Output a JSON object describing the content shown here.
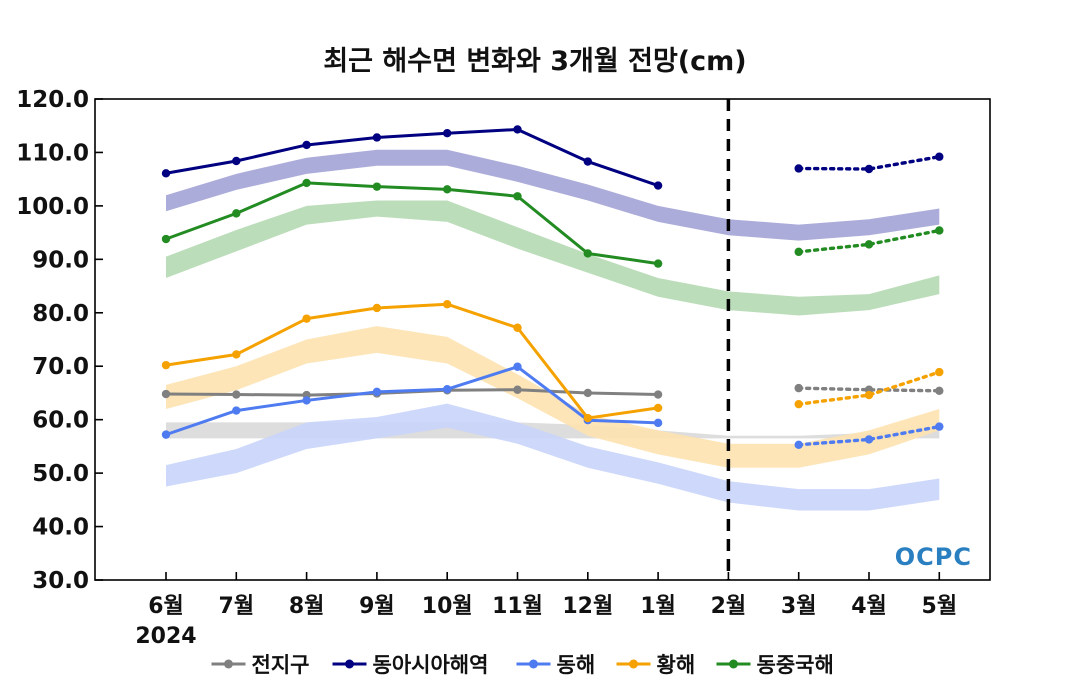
{
  "chart_data": {
    "type": "line",
    "title": "최근 해수면 변화와 3개월 전망(cm)",
    "xlabel": "",
    "ylabel": "",
    "categories": [
      "6월",
      "7월",
      "8월",
      "9월",
      "10월",
      "11월",
      "12월",
      "1월",
      "2월",
      "3월",
      "4월",
      "5월"
    ],
    "year_label": "2024",
    "ylim": [
      30,
      120
    ],
    "yticks": [
      "30.0",
      "40.0",
      "50.0",
      "60.0",
      "70.0",
      "80.0",
      "90.0",
      "100.0",
      "110.0",
      "120.0"
    ],
    "forecast_divider_after": "2월",
    "legend_position": "bottom",
    "series": [
      {
        "name": "전지구",
        "color": "#808080",
        "observed": [
          64.8,
          64.7,
          64.6,
          64.9,
          65.5,
          65.6,
          65.0,
          64.7,
          null,
          null,
          null,
          null
        ],
        "forecast": [
          null,
          null,
          null,
          null,
          null,
          null,
          null,
          null,
          null,
          65.9,
          65.6,
          65.4
        ],
        "band_color": "#d9d9d9",
        "band_low": [
          56.5,
          56.5,
          56.5,
          56.5,
          56.5,
          56.5,
          56.5,
          56.5,
          56.5,
          56.5,
          56.5,
          56.5
        ],
        "band_high": [
          59.5,
          59.5,
          59.5,
          59.5,
          59.5,
          59.5,
          59.0,
          58.0,
          57.0,
          57.0,
          57.5,
          58.5
        ]
      },
      {
        "name": "동아시아해역",
        "color": "#000080",
        "observed": [
          106.1,
          108.4,
          111.4,
          112.8,
          113.6,
          114.3,
          108.3,
          103.8,
          null,
          null,
          null,
          null
        ],
        "forecast": [
          null,
          null,
          null,
          null,
          null,
          null,
          null,
          null,
          null,
          107.0,
          106.9,
          109.2
        ],
        "band_color": "#a3a3d6",
        "band_low": [
          99.0,
          103.0,
          106.0,
          107.5,
          107.5,
          104.5,
          101.0,
          97.0,
          94.5,
          93.5,
          94.5,
          96.5
        ],
        "band_high": [
          102.0,
          106.0,
          109.0,
          110.5,
          110.5,
          107.5,
          104.0,
          100.0,
          97.5,
          96.5,
          97.5,
          99.5
        ]
      },
      {
        "name": "동해",
        "color": "#4f7bf0",
        "observed": [
          57.2,
          61.7,
          63.6,
          65.2,
          65.7,
          69.9,
          59.9,
          59.4,
          null,
          null,
          null,
          null
        ],
        "forecast": [
          null,
          null,
          null,
          null,
          null,
          null,
          null,
          null,
          null,
          55.3,
          56.3,
          58.7
        ],
        "band_color": "#c8d4fb",
        "band_low": [
          47.5,
          50.0,
          54.5,
          56.5,
          58.5,
          55.5,
          51.0,
          48.0,
          44.5,
          43.0,
          43.0,
          45.0
        ],
        "band_high": [
          51.5,
          54.5,
          59.5,
          60.5,
          63.0,
          59.5,
          55.0,
          52.0,
          48.5,
          47.0,
          47.0,
          49.0
        ]
      },
      {
        "name": "황해",
        "color": "#f5a200",
        "observed": [
          70.2,
          72.2,
          78.9,
          80.9,
          81.6,
          77.2,
          60.3,
          62.2,
          null,
          null,
          null,
          null
        ],
        "forecast": [
          null,
          null,
          null,
          null,
          null,
          null,
          null,
          null,
          null,
          62.9,
          64.6,
          68.9
        ],
        "band_color": "#fde2b0",
        "band_low": [
          62.0,
          65.5,
          70.5,
          72.5,
          70.5,
          64.0,
          57.0,
          53.5,
          51.0,
          51.0,
          53.5,
          58.0
        ],
        "band_high": [
          66.5,
          70.0,
          75.0,
          77.5,
          75.5,
          68.5,
          61.0,
          58.0,
          55.5,
          55.5,
          58.0,
          62.0
        ]
      },
      {
        "name": "동중국해",
        "color": "#228b22",
        "observed": [
          93.8,
          98.6,
          104.3,
          103.6,
          103.1,
          101.8,
          91.1,
          89.2,
          null,
          null,
          null,
          null
        ],
        "forecast": [
          null,
          null,
          null,
          null,
          null,
          null,
          null,
          null,
          null,
          91.4,
          92.8,
          95.4
        ],
        "band_color": "#b5d9b2",
        "band_low": [
          86.5,
          91.5,
          96.5,
          98.0,
          97.0,
          92.0,
          87.5,
          83.0,
          80.5,
          79.5,
          80.5,
          83.5
        ],
        "band_high": [
          90.5,
          95.5,
          100.0,
          101.0,
          101.0,
          96.0,
          91.0,
          86.5,
          84.0,
          83.0,
          83.5,
          87.0
        ]
      }
    ],
    "logo": "OCPC"
  }
}
